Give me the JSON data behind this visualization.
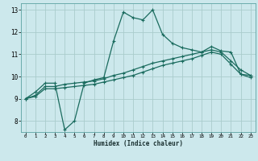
{
  "xlabel": "Humidex (Indice chaleur)",
  "bg_color": "#cce8ec",
  "grid_color": "#aacccc",
  "line_color": "#1a6b5e",
  "xlim": [
    -0.5,
    23.5
  ],
  "ylim": [
    7.5,
    13.3
  ],
  "xticks": [
    0,
    1,
    2,
    3,
    4,
    5,
    6,
    7,
    8,
    9,
    10,
    11,
    12,
    13,
    14,
    15,
    16,
    17,
    18,
    19,
    20,
    21,
    22,
    23
  ],
  "yticks": [
    8,
    9,
    10,
    11,
    12,
    13
  ],
  "series": [
    {
      "x": [
        0,
        1,
        2,
        3,
        4,
        5,
        6,
        7,
        8,
        9,
        10,
        11,
        12,
        13,
        14,
        15,
        16,
        17,
        18,
        19,
        20,
        21,
        22,
        23
      ],
      "y": [
        9.0,
        9.3,
        9.7,
        9.7,
        7.6,
        8.0,
        9.7,
        9.85,
        9.95,
        11.6,
        12.9,
        12.65,
        12.55,
        13.0,
        11.9,
        11.5,
        11.3,
        11.2,
        11.1,
        11.35,
        11.15,
        11.1,
        10.1,
        10.05
      ]
    },
    {
      "x": [
        0,
        1,
        2,
        3,
        4,
        5,
        6,
        7,
        8,
        9,
        10,
        11,
        12,
        13,
        14,
        15,
        16,
        17,
        18,
        19,
        20,
        21,
        22,
        23
      ],
      "y": [
        9.0,
        9.15,
        9.55,
        9.55,
        9.65,
        9.7,
        9.75,
        9.8,
        9.9,
        10.05,
        10.15,
        10.3,
        10.45,
        10.6,
        10.7,
        10.8,
        10.9,
        11.0,
        11.1,
        11.2,
        11.1,
        10.7,
        10.3,
        10.05
      ]
    },
    {
      "x": [
        0,
        1,
        2,
        3,
        4,
        5,
        6,
        7,
        8,
        9,
        10,
        11,
        12,
        13,
        14,
        15,
        16,
        17,
        18,
        19,
        20,
        21,
        22,
        23
      ],
      "y": [
        9.0,
        9.1,
        9.45,
        9.45,
        9.5,
        9.55,
        9.6,
        9.65,
        9.75,
        9.85,
        9.95,
        10.05,
        10.2,
        10.35,
        10.5,
        10.6,
        10.7,
        10.8,
        10.95,
        11.1,
        11.0,
        10.55,
        10.1,
        9.95
      ]
    }
  ]
}
